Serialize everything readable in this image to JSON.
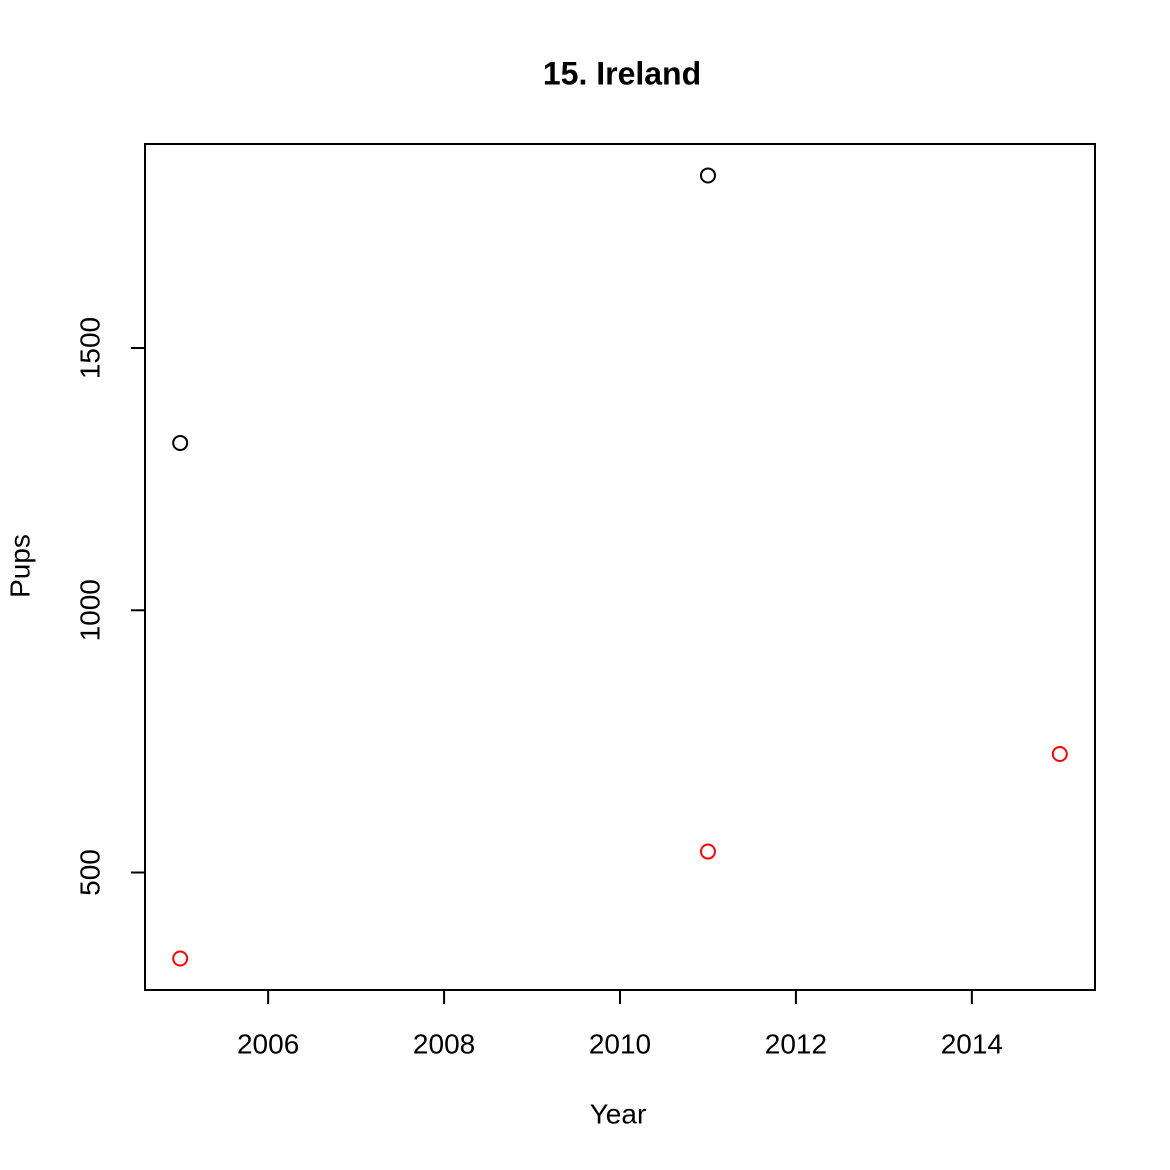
{
  "chart_data": {
    "type": "scatter",
    "title": "15. Ireland",
    "x_label": "Year",
    "y_label": "Pups",
    "series": [
      {
        "color": "#000000",
        "x": [
          2005,
          2011
        ],
        "values": [
          1319,
          1829
        ]
      },
      {
        "color": "#ff0000",
        "x": [
          2005,
          2011,
          2015
        ],
        "values": [
          336,
          540,
          726
        ]
      }
    ],
    "xlim": [
      2004.6,
      2015.4
    ],
    "xticks": [
      2006,
      2008,
      2010,
      2012,
      2014
    ],
    "ylim": [
      276,
      1889
    ],
    "yticks": [
      500,
      1000,
      1500
    ],
    "grid": false
  }
}
